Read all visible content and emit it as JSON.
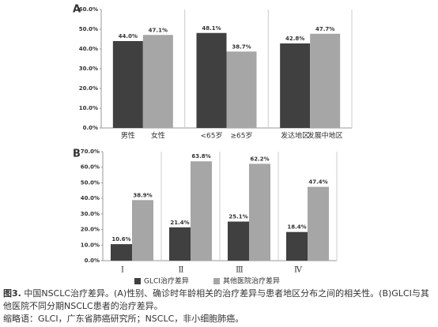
{
  "chart_data": [
    {
      "type": "bar",
      "panel": "A",
      "categories": [
        "男性",
        "女性",
        "<65岁",
        "≥65岁",
        "发达地区",
        "发展中地区"
      ],
      "values": [
        44.0,
        47.1,
        48.1,
        38.7,
        42.8,
        47.7
      ],
      "value_labels": [
        "44.0%",
        "47.1%",
        "48.1%",
        "38.7%",
        "42.8%",
        "47.7%"
      ],
      "colors": [
        "#404040",
        "#a6a6a6",
        "#404040",
        "#a6a6a6",
        "#404040",
        "#a6a6a6"
      ],
      "ylim": [
        0,
        60
      ],
      "yticks": [
        {
          "value": 0,
          "label": "0.0%"
        },
        {
          "value": 10,
          "label": "10.0%"
        },
        {
          "value": 20,
          "label": "20.0%"
        },
        {
          "value": 30,
          "label": "30.0%"
        },
        {
          "value": 40,
          "label": "40.0%"
        },
        {
          "value": 50,
          "label": "50.0%"
        },
        {
          "value": 60,
          "label": "60.0%"
        }
      ]
    },
    {
      "type": "bar",
      "panel": "B",
      "categories": [
        "Ⅰ",
        "Ⅱ",
        "Ⅲ",
        "Ⅳ"
      ],
      "series": [
        {
          "name": "GLCI治疗差异",
          "color": "#404040",
          "values": [
            10.6,
            21.4,
            25.1,
            18.4
          ],
          "value_labels": [
            "10.6%",
            "21.4%",
            "25.1%",
            "18.4%"
          ]
        },
        {
          "name": "其他医院治疗差异",
          "color": "#a6a6a6",
          "values": [
            38.9,
            63.8,
            62.2,
            47.4
          ],
          "value_labels": [
            "38.9%",
            "63.8%",
            "62.2%",
            "47.4%"
          ]
        }
      ],
      "ylim": [
        0,
        70
      ],
      "yticks": [
        {
          "value": 0,
          "label": "0.0%"
        },
        {
          "value": 10,
          "label": "10.0%"
        },
        {
          "value": 20,
          "label": "20.0%"
        },
        {
          "value": 30,
          "label": "30.0%"
        },
        {
          "value": 40,
          "label": "40.0%"
        },
        {
          "value": 50,
          "label": "50.0%"
        },
        {
          "value": 60,
          "label": "60.0%"
        },
        {
          "value": 70,
          "label": "70.0%"
        }
      ],
      "legend": "bottom"
    }
  ],
  "caption": {
    "label": "图3.",
    "text": "中国NSCLC治疗差异。(A)性别、确诊时年龄相关的治疗差异与患者地区分布之间的相关性。(B)GLCI与其他医院不同分期NSCLC患者的治疗差异。",
    "abbreviations": "缩略语：GLCI，广东省肺癌研究所；NSCLC，非小细胞肺癌。"
  }
}
